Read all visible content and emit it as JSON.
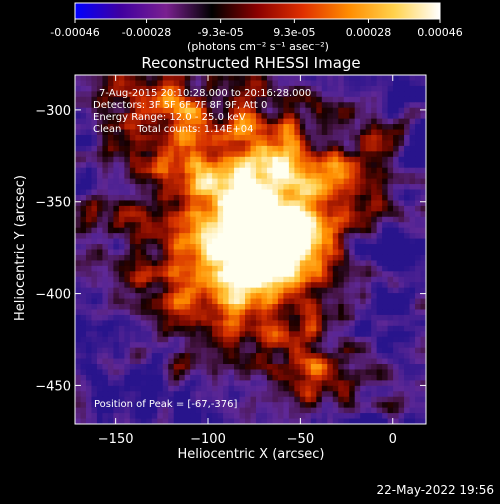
{
  "chart_data": {
    "type": "heatmap",
    "title": "Reconstructed RHESSI Image",
    "colorbar": {
      "tick_labels": [
        "-0.00046",
        "-0.00028",
        "-9.3e-05",
        "9.3e-05",
        "0.00028",
        "0.00046"
      ],
      "unit_label": "(photons cm⁻² s⁻¹ asec⁻²)",
      "range": [
        -0.00046,
        0.00046
      ],
      "colormap_stops": [
        "#0000ff",
        "#4000a0",
        "#7a2090",
        "#000000",
        "#8b0000",
        "#e03000",
        "#ff8c00",
        "#ffd24d",
        "#ffffff"
      ]
    },
    "annotations": {
      "time": "7-Aug-2015 20:10:28.000 to 20:16:28.000",
      "detectors": "Detectors: 3F 5F 6F 7F 8F 9F, Att 0",
      "energy": "Energy Range: 12.0 - 25.0 keV",
      "clean": "Clean     Total counts: 1.14E+04",
      "peak": "Position of Peak = [-67,-376]"
    },
    "xlabel": "Heliocentric X (arcsec)",
    "ylabel": "Heliocentric Y (arcsec)",
    "xlim": [
      -172,
      18
    ],
    "ylim": [
      -471,
      -281
    ],
    "x_ticks": [
      -150,
      -100,
      -50,
      0
    ],
    "x_tick_labels": [
      "−150",
      "−100",
      "−50",
      "0"
    ],
    "y_ticks": [
      -300,
      -350,
      -400,
      -450
    ],
    "y_tick_labels": [
      "−300",
      "−350",
      "−400",
      "−450"
    ],
    "peak": {
      "x": -67,
      "y": -376
    },
    "grid": false,
    "legend": "colorbar-top"
  },
  "footer": {
    "timestamp": "22-May-2022 19:56"
  }
}
